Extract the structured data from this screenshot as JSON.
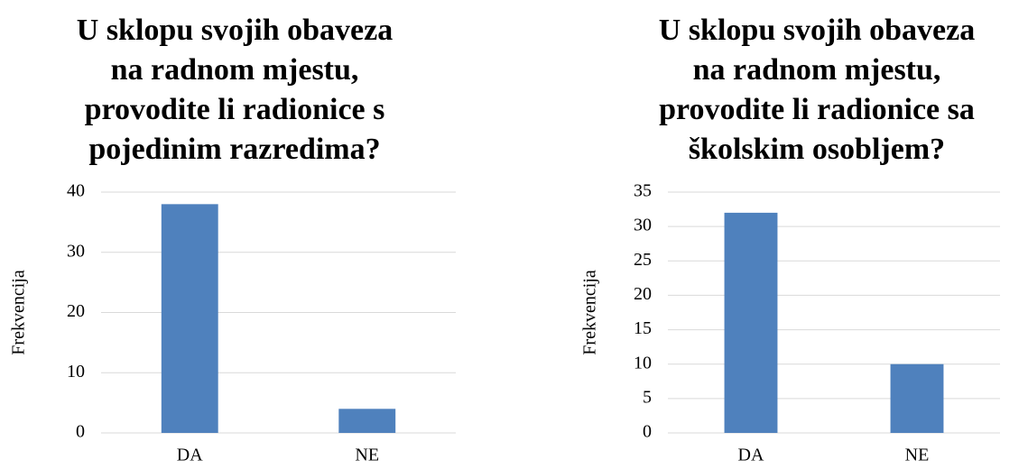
{
  "chart_data": [
    {
      "type": "bar",
      "title": [
        "U sklopu svojih obaveza",
        "na radnom mjestu,",
        "provodite li radionice s",
        "pojedinim razredima?"
      ],
      "y_label": "Frekvencija",
      "categories": [
        "DA",
        "NE"
      ],
      "values": [
        38,
        4
      ],
      "color": "#4f81bd",
      "ylim": [
        0,
        40
      ],
      "yticks": [
        0,
        10,
        20,
        30,
        40
      ],
      "grid": true
    },
    {
      "type": "bar",
      "title": [
        "U sklopu svojih obaveza",
        "na radnom mjestu,",
        "provodite li radionice sa",
        "školskim osobljem?"
      ],
      "y_label": "Frekvencija",
      "categories": [
        "DA",
        "NE"
      ],
      "values": [
        32,
        10
      ],
      "color": "#4f81bd",
      "ylim": [
        0,
        35
      ],
      "yticks": [
        0,
        5,
        10,
        15,
        20,
        25,
        30,
        35
      ],
      "grid": true
    }
  ]
}
